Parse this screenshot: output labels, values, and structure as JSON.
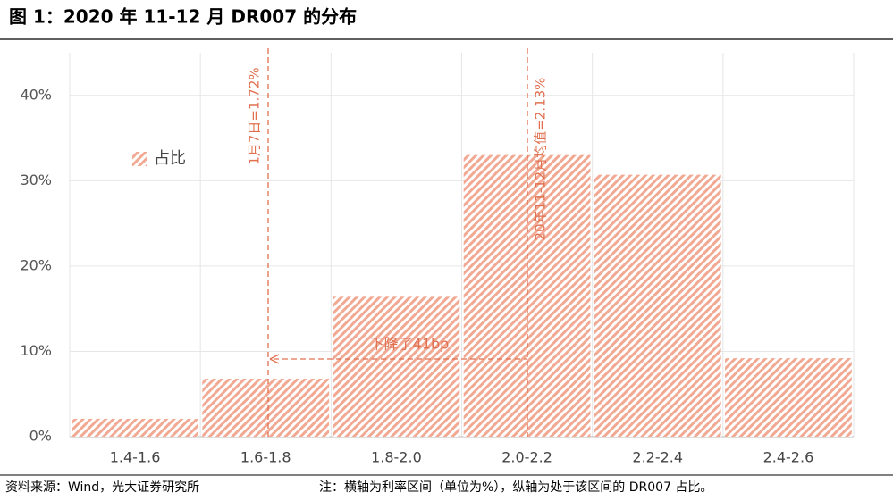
{
  "chart_data": {
    "type": "bar",
    "title": "图 1：2020 年 11-12 月 DR007 的分布",
    "categories": [
      "1.4-1.6",
      "1.6-1.8",
      "1.8-2.0",
      "2.0-2.2",
      "2.2-2.4",
      "2.4-2.6"
    ],
    "series": [
      {
        "name": "占比",
        "color": "#f2a993",
        "values": [
          2.1,
          6.8,
          16.4,
          33.0,
          30.7,
          9.2
        ]
      }
    ],
    "ylim": [
      0,
      45
    ],
    "yticks": [
      {
        "value": 0,
        "label": "0%"
      },
      {
        "value": 10,
        "label": "10%"
      },
      {
        "value": 20,
        "label": "20%"
      },
      {
        "value": 30,
        "label": "30%"
      },
      {
        "value": 40,
        "label": "40%"
      }
    ],
    "grid": true,
    "annotations": [
      "1月7日=1.72%",
      "20年11-12月均值=2.13%",
      "下降了41bp"
    ],
    "source": "资料来源：Wind，光大证券研究所",
    "note": "注：横轴为利率区间（单位为%），纵轴为处于该区间的 DR007 占比。"
  }
}
